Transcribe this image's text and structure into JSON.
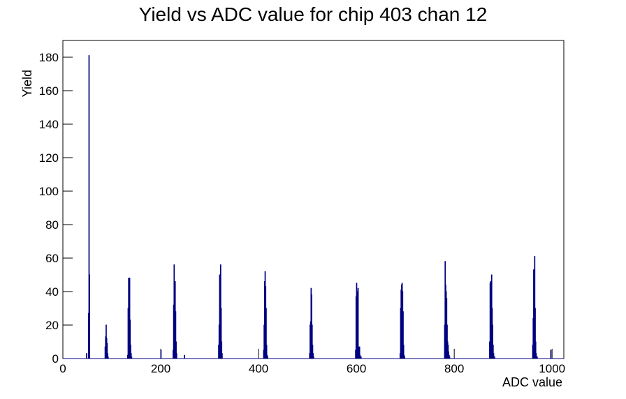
{
  "chart_data": {
    "type": "histogram",
    "title": "Yield vs ADC value for chip 403 chan 12",
    "x_label": "ADC value",
    "y_label": "Yield",
    "color": "#000080",
    "bins": [
      0,
      48,
      49,
      52,
      53,
      54,
      55,
      86,
      87,
      88,
      89,
      90,
      91,
      92,
      93,
      132,
      133,
      134,
      135,
      136,
      137,
      138,
      139,
      140,
      141,
      200,
      201,
      225,
      226,
      227,
      228,
      229,
      230,
      231,
      232,
      233,
      248,
      249,
      318,
      319,
      320,
      321,
      322,
      323,
      324,
      325,
      326,
      410,
      411,
      412,
      413,
      414,
      415,
      416,
      417,
      418,
      419,
      504,
      505,
      506,
      507,
      508,
      509,
      510,
      511,
      512,
      513,
      598,
      599,
      600,
      601,
      602,
      603,
      604,
      605,
      606,
      607,
      608,
      609,
      610,
      689,
      690,
      691,
      692,
      693,
      694,
      695,
      696,
      697,
      698,
      699,
      780,
      781,
      782,
      783,
      784,
      785,
      786,
      787,
      788,
      789,
      790,
      791,
      872,
      873,
      874,
      875,
      876,
      877,
      878,
      879,
      880,
      881,
      882,
      883,
      960,
      961,
      962,
      963,
      964,
      965,
      966,
      967,
      968,
      969,
      970,
      997,
      998,
      1024
    ],
    "values": [
      0,
      3,
      0,
      27,
      181,
      50,
      0,
      7,
      13,
      20,
      12,
      9,
      3,
      1,
      0,
      2,
      30,
      48,
      47,
      48,
      23,
      8,
      3,
      1,
      0,
      5,
      0,
      5,
      32,
      56,
      42,
      46,
      28,
      10,
      3,
      0,
      2,
      0,
      8,
      20,
      50,
      35,
      56,
      30,
      10,
      3,
      0,
      5,
      20,
      46,
      52,
      43,
      30,
      8,
      2,
      1,
      0,
      3,
      20,
      22,
      42,
      38,
      20,
      8,
      3,
      1,
      0,
      5,
      37,
      45,
      40,
      38,
      42,
      7,
      5,
      7,
      2,
      1,
      1,
      0,
      3,
      30,
      41,
      44,
      45,
      40,
      28,
      8,
      2,
      1,
      0,
      20,
      58,
      44,
      40,
      36,
      20,
      10,
      8,
      4,
      2,
      1,
      0,
      10,
      45,
      46,
      30,
      50,
      30,
      20,
      8,
      3,
      1,
      1,
      0,
      8,
      24,
      53,
      52,
      61,
      30,
      10,
      3,
      1,
      1,
      0,
      5,
      0
    ],
    "xlim": [
      0,
      1024
    ],
    "ylim": [
      0,
      190
    ],
    "xticks": [
      0,
      200,
      400,
      600,
      800,
      1000
    ],
    "yticks": [
      0,
      20,
      40,
      60,
      80,
      100,
      120,
      140,
      160,
      180
    ]
  }
}
